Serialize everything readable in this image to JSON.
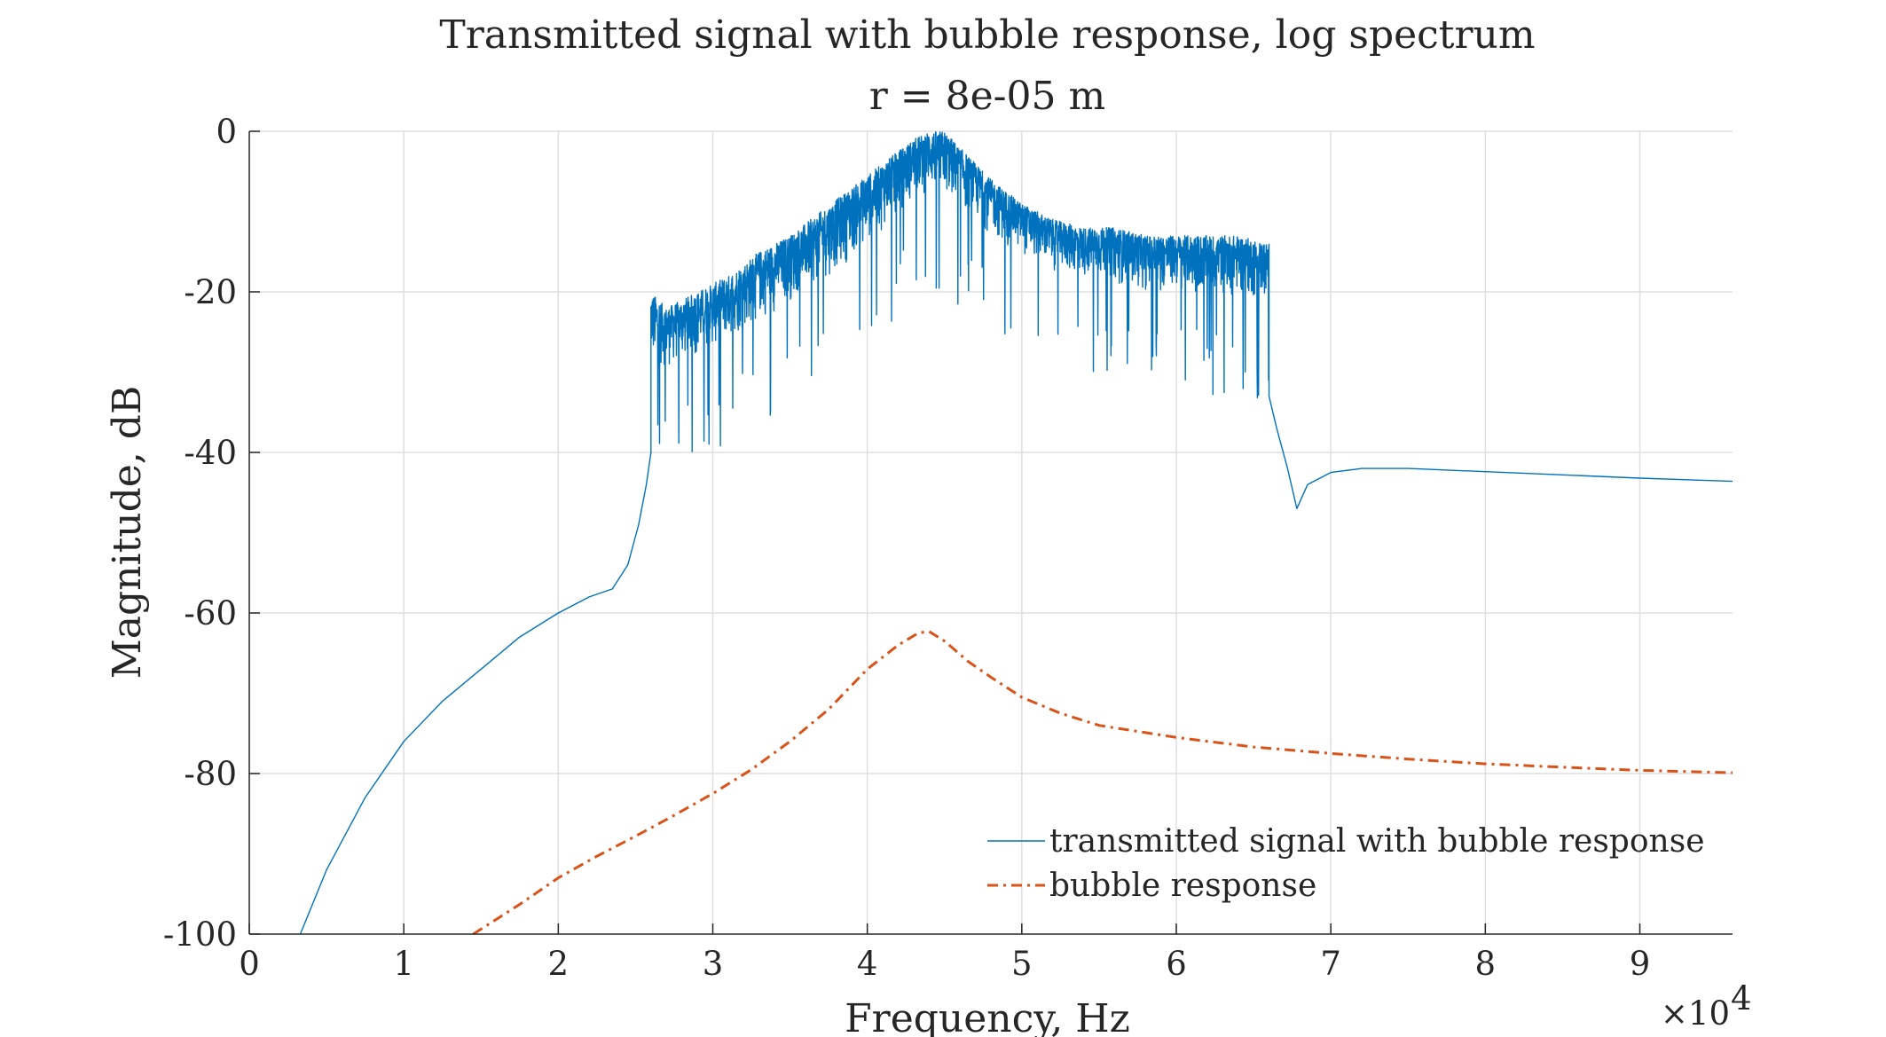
{
  "chart_data": {
    "type": "line",
    "title": "Transmitted signal with bubble response, log spectrum",
    "subtitle": "r = 8e-05 m",
    "xlabel": "Frequency, Hz",
    "ylabel": "Magnitude, dB",
    "x_exponent_label": "×10",
    "x_exponent_power": "4",
    "xlim": [
      0,
      96000
    ],
    "ylim": [
      -100,
      0
    ],
    "grid": true,
    "legend_placement": "bottom-right",
    "x_ticks": [
      0,
      10000,
      20000,
      30000,
      40000,
      50000,
      60000,
      70000,
      80000,
      90000
    ],
    "x_tick_labels": [
      "0",
      "1",
      "2",
      "3",
      "4",
      "5",
      "6",
      "7",
      "8",
      "9"
    ],
    "y_ticks": [
      0,
      -20,
      -40,
      -60,
      -80,
      -100
    ],
    "y_tick_labels": [
      "0",
      "-20",
      "-40",
      "-60",
      "-80",
      "-100"
    ],
    "series": [
      {
        "name": "transmitted signal with bubble response",
        "color": "#0072BD",
        "style": "solid",
        "smooth_x": [
          3300,
          5000,
          7500,
          10000,
          12500,
          15000,
          17500,
          20000,
          22000,
          23500,
          24500,
          25200,
          25700,
          26000
        ],
        "smooth_y": [
          -100,
          -92,
          -83,
          -76,
          -71,
          -67,
          -63,
          -60,
          -58,
          -57,
          -54,
          -49,
          -44,
          -40
        ],
        "band_x": [
          26000,
          27000,
          29000,
          31000,
          33000,
          35000,
          37000,
          39000,
          41000,
          43000,
          44000,
          45000,
          46000,
          48000,
          50000,
          52000,
          54000,
          56000,
          58000,
          60000,
          62000,
          64000,
          66000
        ],
        "band_upper_y": [
          -20,
          -22,
          -20,
          -18,
          -15,
          -13,
          -10,
          -7,
          -4,
          -1,
          0,
          0,
          -2,
          -6,
          -9,
          -11,
          -12,
          -12,
          -13,
          -13,
          -13,
          -13,
          -14
        ],
        "band_lower_y": [
          -35,
          -34,
          -33,
          -31,
          -29,
          -26,
          -24,
          -21,
          -17,
          -13,
          -12,
          -13,
          -14,
          -17,
          -19,
          -21,
          -22,
          -23,
          -24,
          -24,
          -25,
          -25,
          -26
        ],
        "tail_x": [
          66000,
          66500,
          67200,
          67800,
          68500,
          70000,
          72000,
          75000,
          80000,
          85000,
          90000,
          96000
        ],
        "tail_y": [
          -33,
          -37,
          -42,
          -47,
          -44,
          -42.5,
          -42,
          -42,
          -42.4,
          -42.8,
          -43.2,
          -43.6
        ]
      },
      {
        "name": "bubble response",
        "color": "#D95319",
        "style": "dashdot",
        "x": [
          14500,
          17500,
          20000,
          22500,
          25000,
          27500,
          30000,
          32500,
          35000,
          37500,
          40000,
          42000,
          43300,
          44000,
          45000,
          46500,
          48000,
          50000,
          52500,
          55000,
          60000,
          65000,
          70000,
          75000,
          80000,
          85000,
          90000,
          96000
        ],
        "y": [
          -100,
          -96.3,
          -93,
          -90.3,
          -87.8,
          -85.2,
          -82.5,
          -79.5,
          -76,
          -72,
          -67,
          -64,
          -62.5,
          -62.3,
          -63.5,
          -66,
          -68,
          -70.5,
          -72.5,
          -74,
          -75.5,
          -76.7,
          -77.5,
          -78.2,
          -78.8,
          -79.2,
          -79.6,
          -79.9
        ]
      }
    ]
  }
}
